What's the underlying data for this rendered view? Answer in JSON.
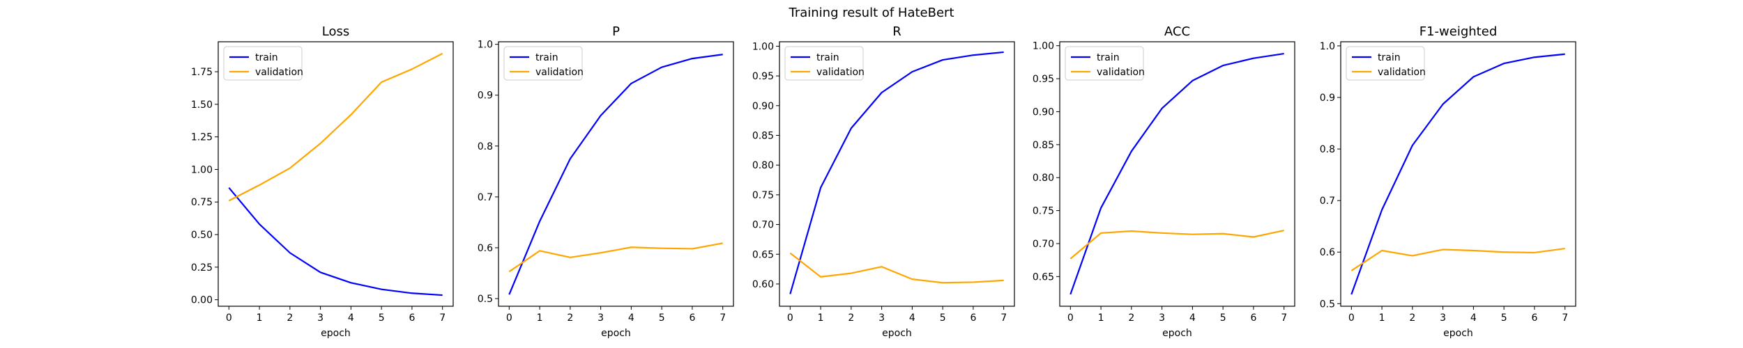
{
  "figure": {
    "title": "Training result of HateBert"
  },
  "chart_data": [
    {
      "type": "line",
      "title": "Loss",
      "xlabel": "epoch",
      "ylabel": "",
      "x": [
        0,
        1,
        2,
        3,
        4,
        5,
        6,
        7
      ],
      "xlim": [
        -0.35,
        7.35
      ],
      "ylim": [
        -0.05,
        1.98
      ],
      "xticks": [
        0,
        1,
        2,
        3,
        4,
        5,
        6,
        7
      ],
      "yticks": [
        0.0,
        0.25,
        0.5,
        0.75,
        1.0,
        1.25,
        1.5,
        1.75
      ],
      "yticklabels": [
        "0.00",
        "0.25",
        "0.50",
        "0.75",
        "1.00",
        "1.25",
        "1.50",
        "1.75"
      ],
      "legend": "top-left",
      "series": [
        {
          "name": "train",
          "color": "#0000ff",
          "values": [
            0.86,
            0.58,
            0.36,
            0.21,
            0.13,
            0.08,
            0.05,
            0.035
          ]
        },
        {
          "name": "validation",
          "color": "#ffa500",
          "values": [
            0.76,
            0.88,
            1.01,
            1.2,
            1.42,
            1.67,
            1.77,
            1.89
          ]
        }
      ]
    },
    {
      "type": "line",
      "title": "P",
      "xlabel": "epoch",
      "ylabel": "",
      "x": [
        0,
        1,
        2,
        3,
        4,
        5,
        6,
        7
      ],
      "xlim": [
        -0.35,
        7.35
      ],
      "ylim": [
        0.485,
        1.005
      ],
      "xticks": [
        0,
        1,
        2,
        3,
        4,
        5,
        6,
        7
      ],
      "yticks": [
        0.5,
        0.6,
        0.7,
        0.8,
        0.9,
        1.0
      ],
      "yticklabels": [
        "0.5",
        "0.6",
        "0.7",
        "0.8",
        "0.9",
        "1.0"
      ],
      "legend": "top-left",
      "series": [
        {
          "name": "train",
          "color": "#0000ff",
          "values": [
            0.508,
            0.652,
            0.775,
            0.86,
            0.923,
            0.955,
            0.972,
            0.98
          ]
        },
        {
          "name": "validation",
          "color": "#ffa500",
          "values": [
            0.553,
            0.594,
            0.581,
            0.59,
            0.601,
            0.599,
            0.598,
            0.609
          ]
        }
      ]
    },
    {
      "type": "line",
      "title": "R",
      "xlabel": "epoch",
      "ylabel": "",
      "x": [
        0,
        1,
        2,
        3,
        4,
        5,
        6,
        7
      ],
      "xlim": [
        -0.35,
        7.35
      ],
      "ylim": [
        0.5625,
        1.0075
      ],
      "xticks": [
        0,
        1,
        2,
        3,
        4,
        5,
        6,
        7
      ],
      "yticks": [
        0.6,
        0.65,
        0.7,
        0.75,
        0.8,
        0.85,
        0.9,
        0.95,
        1.0
      ],
      "yticklabels": [
        "0.60",
        "0.65",
        "0.70",
        "0.75",
        "0.80",
        "0.85",
        "0.90",
        "0.95",
        "1.00"
      ],
      "legend": "top-left",
      "series": [
        {
          "name": "train",
          "color": "#0000ff",
          "values": [
            0.583,
            0.762,
            0.862,
            0.922,
            0.957,
            0.977,
            0.985,
            0.99
          ]
        },
        {
          "name": "validation",
          "color": "#ffa500",
          "values": [
            0.652,
            0.612,
            0.618,
            0.629,
            0.608,
            0.602,
            0.603,
            0.606
          ]
        }
      ]
    },
    {
      "type": "line",
      "title": "ACC",
      "xlabel": "epoch",
      "ylabel": "",
      "x": [
        0,
        1,
        2,
        3,
        4,
        5,
        6,
        7
      ],
      "xlim": [
        -0.35,
        7.35
      ],
      "ylim": [
        0.605,
        1.006
      ],
      "xticks": [
        0,
        1,
        2,
        3,
        4,
        5,
        6,
        7
      ],
      "yticks": [
        0.65,
        0.7,
        0.75,
        0.8,
        0.85,
        0.9,
        0.95,
        1.0
      ],
      "yticklabels": [
        "0.65",
        "0.70",
        "0.75",
        "0.80",
        "0.85",
        "0.90",
        "0.95",
        "1.00"
      ],
      "legend": "top-left",
      "series": [
        {
          "name": "train",
          "color": "#0000ff",
          "values": [
            0.623,
            0.754,
            0.84,
            0.905,
            0.947,
            0.97,
            0.981,
            0.988
          ]
        },
        {
          "name": "validation",
          "color": "#ffa500",
          "values": [
            0.677,
            0.716,
            0.719,
            0.716,
            0.714,
            0.715,
            0.71,
            0.72
          ]
        }
      ]
    },
    {
      "type": "line",
      "title": "F1-weighted",
      "xlabel": "epoch",
      "ylabel": "",
      "x": [
        0,
        1,
        2,
        3,
        4,
        5,
        6,
        7
      ],
      "xlim": [
        -0.35,
        7.35
      ],
      "ylim": [
        0.495,
        1.008
      ],
      "xticks": [
        0,
        1,
        2,
        3,
        4,
        5,
        6,
        7
      ],
      "yticks": [
        0.5,
        0.6,
        0.7,
        0.8,
        0.9,
        1.0
      ],
      "yticklabels": [
        "0.5",
        "0.6",
        "0.7",
        "0.8",
        "0.9",
        "1.0"
      ],
      "legend": "top-left",
      "series": [
        {
          "name": "train",
          "color": "#0000ff",
          "values": [
            0.518,
            0.682,
            0.807,
            0.887,
            0.94,
            0.966,
            0.978,
            0.984
          ]
        },
        {
          "name": "validation",
          "color": "#ffa500",
          "values": [
            0.564,
            0.603,
            0.593,
            0.605,
            0.603,
            0.6,
            0.599,
            0.607
          ]
        }
      ]
    }
  ]
}
